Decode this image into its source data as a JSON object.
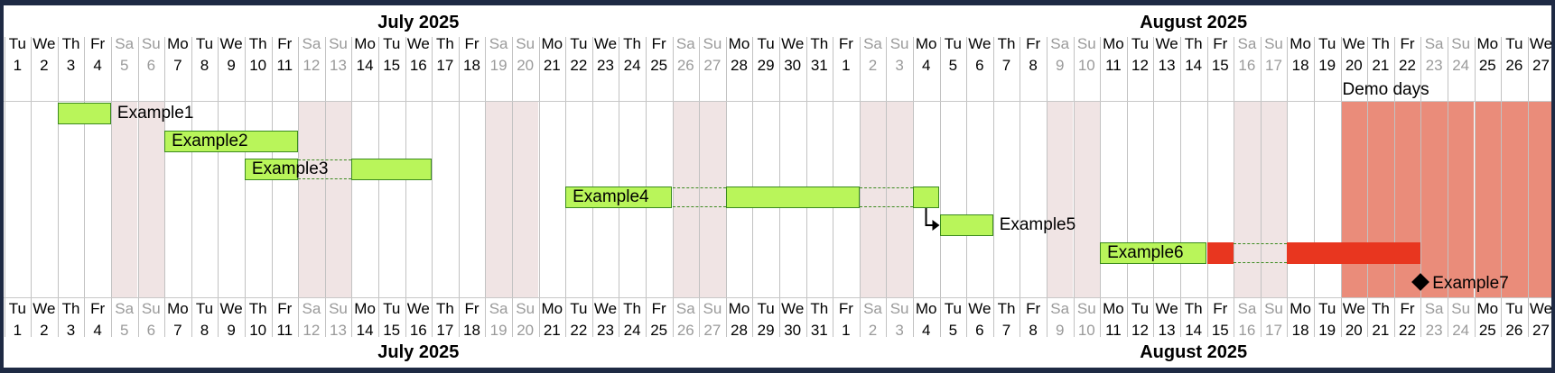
{
  "months": [
    {
      "label": "July 2025",
      "first_day_index": 0,
      "last_day_index": 30
    },
    {
      "label": "August 2025",
      "first_day_index": 31,
      "last_day_index": 57
    }
  ],
  "days": [
    {
      "wd": "Tu",
      "d": "1"
    },
    {
      "wd": "We",
      "d": "2"
    },
    {
      "wd": "Th",
      "d": "3"
    },
    {
      "wd": "Fr",
      "d": "4"
    },
    {
      "wd": "Sa",
      "d": "5"
    },
    {
      "wd": "Su",
      "d": "6"
    },
    {
      "wd": "Mo",
      "d": "7"
    },
    {
      "wd": "Tu",
      "d": "8"
    },
    {
      "wd": "We",
      "d": "9"
    },
    {
      "wd": "Th",
      "d": "10"
    },
    {
      "wd": "Fr",
      "d": "11"
    },
    {
      "wd": "Sa",
      "d": "12"
    },
    {
      "wd": "Su",
      "d": "13"
    },
    {
      "wd": "Mo",
      "d": "14"
    },
    {
      "wd": "Tu",
      "d": "15"
    },
    {
      "wd": "We",
      "d": "16"
    },
    {
      "wd": "Th",
      "d": "17"
    },
    {
      "wd": "Fr",
      "d": "18"
    },
    {
      "wd": "Sa",
      "d": "19"
    },
    {
      "wd": "Su",
      "d": "20"
    },
    {
      "wd": "Mo",
      "d": "21"
    },
    {
      "wd": "Tu",
      "d": "22"
    },
    {
      "wd": "We",
      "d": "23"
    },
    {
      "wd": "Th",
      "d": "24"
    },
    {
      "wd": "Fr",
      "d": "25"
    },
    {
      "wd": "Sa",
      "d": "26"
    },
    {
      "wd": "Su",
      "d": "27"
    },
    {
      "wd": "Mo",
      "d": "28"
    },
    {
      "wd": "Tu",
      "d": "29"
    },
    {
      "wd": "We",
      "d": "30"
    },
    {
      "wd": "Th",
      "d": "31"
    },
    {
      "wd": "Fr",
      "d": "1"
    },
    {
      "wd": "Sa",
      "d": "2"
    },
    {
      "wd": "Su",
      "d": "3"
    },
    {
      "wd": "Mo",
      "d": "4"
    },
    {
      "wd": "Tu",
      "d": "5"
    },
    {
      "wd": "We",
      "d": "6"
    },
    {
      "wd": "Th",
      "d": "7"
    },
    {
      "wd": "Fr",
      "d": "8"
    },
    {
      "wd": "Sa",
      "d": "9"
    },
    {
      "wd": "Su",
      "d": "10"
    },
    {
      "wd": "Mo",
      "d": "11"
    },
    {
      "wd": "Tu",
      "d": "12"
    },
    {
      "wd": "We",
      "d": "13"
    },
    {
      "wd": "Th",
      "d": "14"
    },
    {
      "wd": "Fr",
      "d": "15"
    },
    {
      "wd": "Sa",
      "d": "16"
    },
    {
      "wd": "Su",
      "d": "17"
    },
    {
      "wd": "Mo",
      "d": "18"
    },
    {
      "wd": "Tu",
      "d": "19"
    },
    {
      "wd": "We",
      "d": "20"
    },
    {
      "wd": "Th",
      "d": "21"
    },
    {
      "wd": "Fr",
      "d": "22"
    },
    {
      "wd": "Sa",
      "d": "23"
    },
    {
      "wd": "Su",
      "d": "24"
    },
    {
      "wd": "Mo",
      "d": "25"
    },
    {
      "wd": "Tu",
      "d": "26"
    },
    {
      "wd": "We",
      "d": "27"
    }
  ],
  "highlight": {
    "label": "Demo days",
    "start_day_index": 50,
    "end_day_index": 57,
    "color": "#ea8c7a"
  },
  "colors": {
    "bar": "#b9f55a",
    "bar_border": "#3b8a1f",
    "late": "#e8361f",
    "weekend": "#f0e4e4"
  },
  "tasks": [
    {
      "name": "Example1",
      "row": 0,
      "segments": [
        {
          "start": 2,
          "end": 3
        }
      ],
      "label_position": "right"
    },
    {
      "name": "Example2",
      "row": 1,
      "segments": [
        {
          "start": 6,
          "end": 10
        }
      ],
      "label_position": "inside"
    },
    {
      "name": "Example3",
      "row": 2,
      "segments": [
        {
          "start": 9,
          "end": 10
        },
        {
          "start": 13,
          "end": 15
        }
      ],
      "label_position": "inside"
    },
    {
      "name": "Example4",
      "row": 3,
      "segments": [
        {
          "start": 21,
          "end": 24
        },
        {
          "start": 27,
          "end": 31
        },
        {
          "start": 34,
          "end": 34
        }
      ],
      "label_position": "inside"
    },
    {
      "name": "Example5",
      "row": 4,
      "segments": [
        {
          "start": 35,
          "end": 36
        }
      ],
      "label_position": "right",
      "depends_on": "Example4"
    },
    {
      "name": "Example6",
      "row": 5,
      "segments": [
        {
          "start": 41,
          "end": 44
        },
        {
          "start": 45,
          "end": 45,
          "late": true
        },
        {
          "start": 48,
          "end": 52,
          "late": true
        }
      ],
      "label_position": "inside"
    }
  ],
  "milestones": [
    {
      "name": "Example7",
      "row": 6,
      "day_index": 52
    }
  ]
}
